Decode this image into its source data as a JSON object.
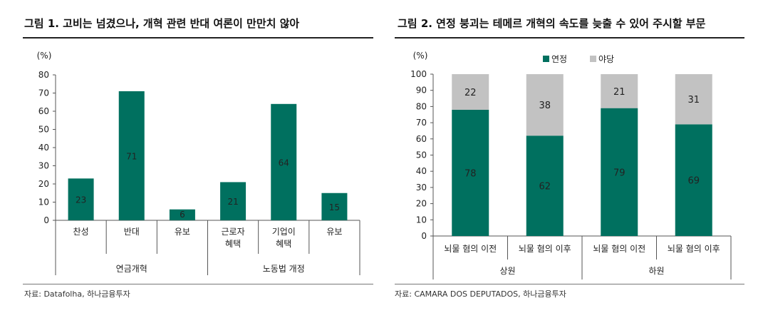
{
  "colors": {
    "bar": "#00705f",
    "secondary": "#c2c2c2",
    "axis": "#555555",
    "label_dark": "#222222"
  },
  "chart_data": [
    {
      "type": "bar",
      "title": "그림 1. 고비는 넘겼으나, 개혁 관련 반대 여론이 만만치 않아",
      "unit_label": "(%)",
      "ylim": [
        0,
        80
      ],
      "yticks": [
        0,
        10,
        20,
        30,
        40,
        50,
        60,
        70,
        80
      ],
      "categories": [
        "찬성",
        "반대",
        "유보",
        "근로자\n혜택",
        "기업이\n혜택",
        "유보"
      ],
      "values": [
        23,
        71,
        6,
        21,
        64,
        15
      ],
      "groups": [
        {
          "label": "연금개혁",
          "count": 3
        },
        {
          "label": "노동법 개정",
          "count": 3
        }
      ],
      "source": "자료: Datafolha, 하나금융투자",
      "grid": false
    },
    {
      "type": "stacked-bar",
      "title": "그림 2. 연정 붕괴는 테메르 개혁의 속도를 늦출 수 있어 주시할 부문",
      "unit_label": "(%)",
      "ylim": [
        0,
        100
      ],
      "yticks": [
        0,
        10,
        20,
        30,
        40,
        50,
        60,
        70,
        80,
        90,
        100
      ],
      "categories": [
        "뇌물 혐의 이전",
        "뇌물 혐의 이후",
        "뇌물 혐의 이전",
        "뇌물 혐의 이후"
      ],
      "series": [
        {
          "name": "연정",
          "values": [
            78,
            62,
            79,
            69
          ]
        },
        {
          "name": "야당",
          "values": [
            22,
            38,
            21,
            31
          ]
        }
      ],
      "groups": [
        {
          "label": "상원",
          "count": 2
        },
        {
          "label": "하원",
          "count": 2
        }
      ],
      "legend_position": "top",
      "source": "자료: CAMARA DOS DEPUTADOS, 하나금융투자",
      "grid": false
    }
  ]
}
